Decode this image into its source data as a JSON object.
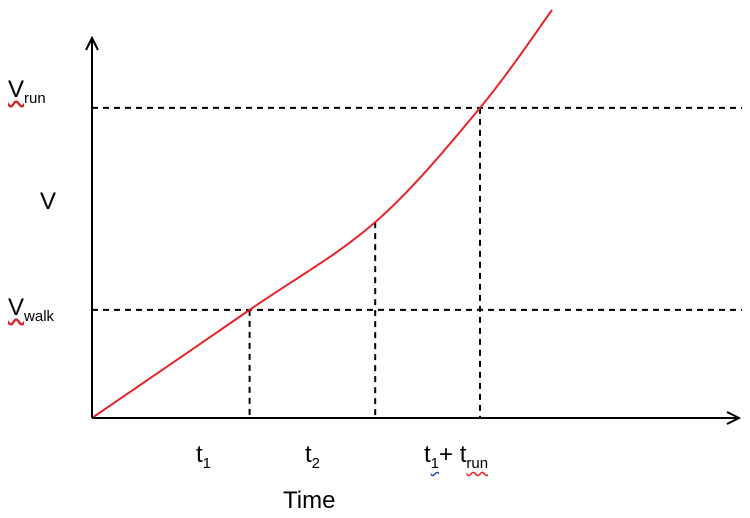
{
  "chart_data": {
    "type": "line",
    "xlabel": "Time",
    "ylabel": "V",
    "colors": {
      "curve": "#e8232a",
      "axis": "#000000",
      "guide": "#000000"
    },
    "axis_style": "arrow-headed axes, no numeric ticks",
    "y_markers": [
      {
        "main": "V",
        "sub": "run",
        "value": 0.76
      },
      {
        "main": "V",
        "sub": "walk",
        "value": 0.265
      }
    ],
    "x_markers": [
      {
        "main": "t",
        "sub": "1",
        "value": 0.197
      },
      {
        "main": "t",
        "sub": "2",
        "value": 0.354
      },
      {
        "main": "t",
        "sub": "1",
        "between": "+ t",
        "sub2": "run",
        "value": 0.485
      }
    ],
    "series": [
      {
        "x": [
          0,
          0.197,
          0.354,
          0.485,
          0.575
        ],
        "y": [
          0,
          0.265,
          0.48,
          0.76,
          1.0
        ]
      }
    ]
  }
}
